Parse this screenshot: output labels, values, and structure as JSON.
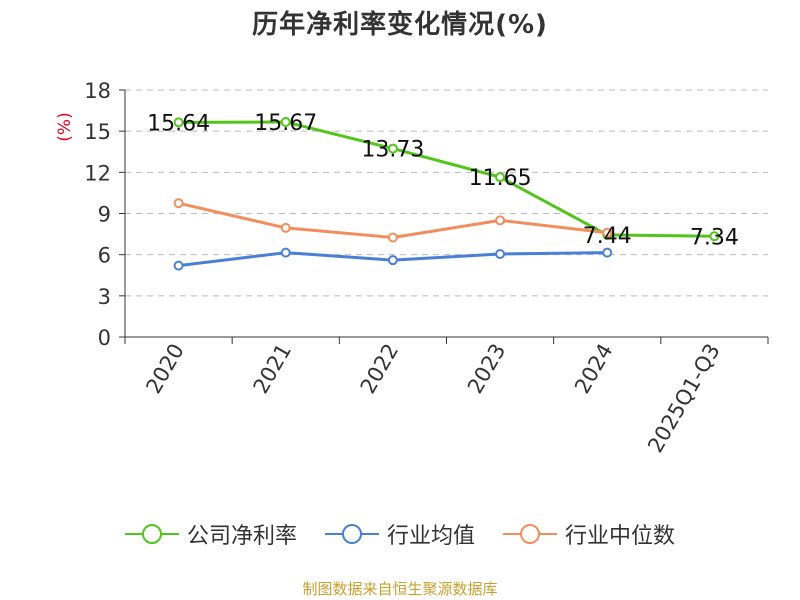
{
  "title": "历年净利率变化情况(%)",
  "footer": "制图数据来自恒生聚源数据库",
  "colors": {
    "company": "#52c41a",
    "industry_avg": "#4a7fd6",
    "industry_median": "#f28e5e",
    "ylabel": "#e0001b",
    "footer": "#c8a030",
    "axis": "#333333",
    "grid": "#bbbbbb"
  },
  "chart_data": {
    "type": "line",
    "title": "历年净利率变化情况(%)",
    "xlabel": "",
    "ylabel": "(%)",
    "categories": [
      "2020",
      "2021",
      "2022",
      "2023",
      "2024",
      "2025Q1-Q3"
    ],
    "ylim": [
      0,
      18
    ],
    "yticks": [
      0,
      3,
      6,
      9,
      12,
      15,
      18
    ],
    "grid": true,
    "legend_position": "bottom",
    "series": [
      {
        "name": "公司净利率",
        "values": [
          15.64,
          15.67,
          13.73,
          11.65,
          7.44,
          7.34
        ],
        "labels": [
          "15.64",
          "15.67",
          "13.73",
          "11.65",
          "7.44",
          "7.34"
        ],
        "color": "#52c41a"
      },
      {
        "name": "行业均值",
        "values": [
          5.2,
          6.15,
          5.6,
          6.05,
          6.15,
          null
        ],
        "color": "#4a7fd6"
      },
      {
        "name": "行业中位数",
        "values": [
          9.75,
          7.95,
          7.25,
          8.5,
          7.6,
          null
        ],
        "color": "#f28e5e"
      }
    ]
  }
}
